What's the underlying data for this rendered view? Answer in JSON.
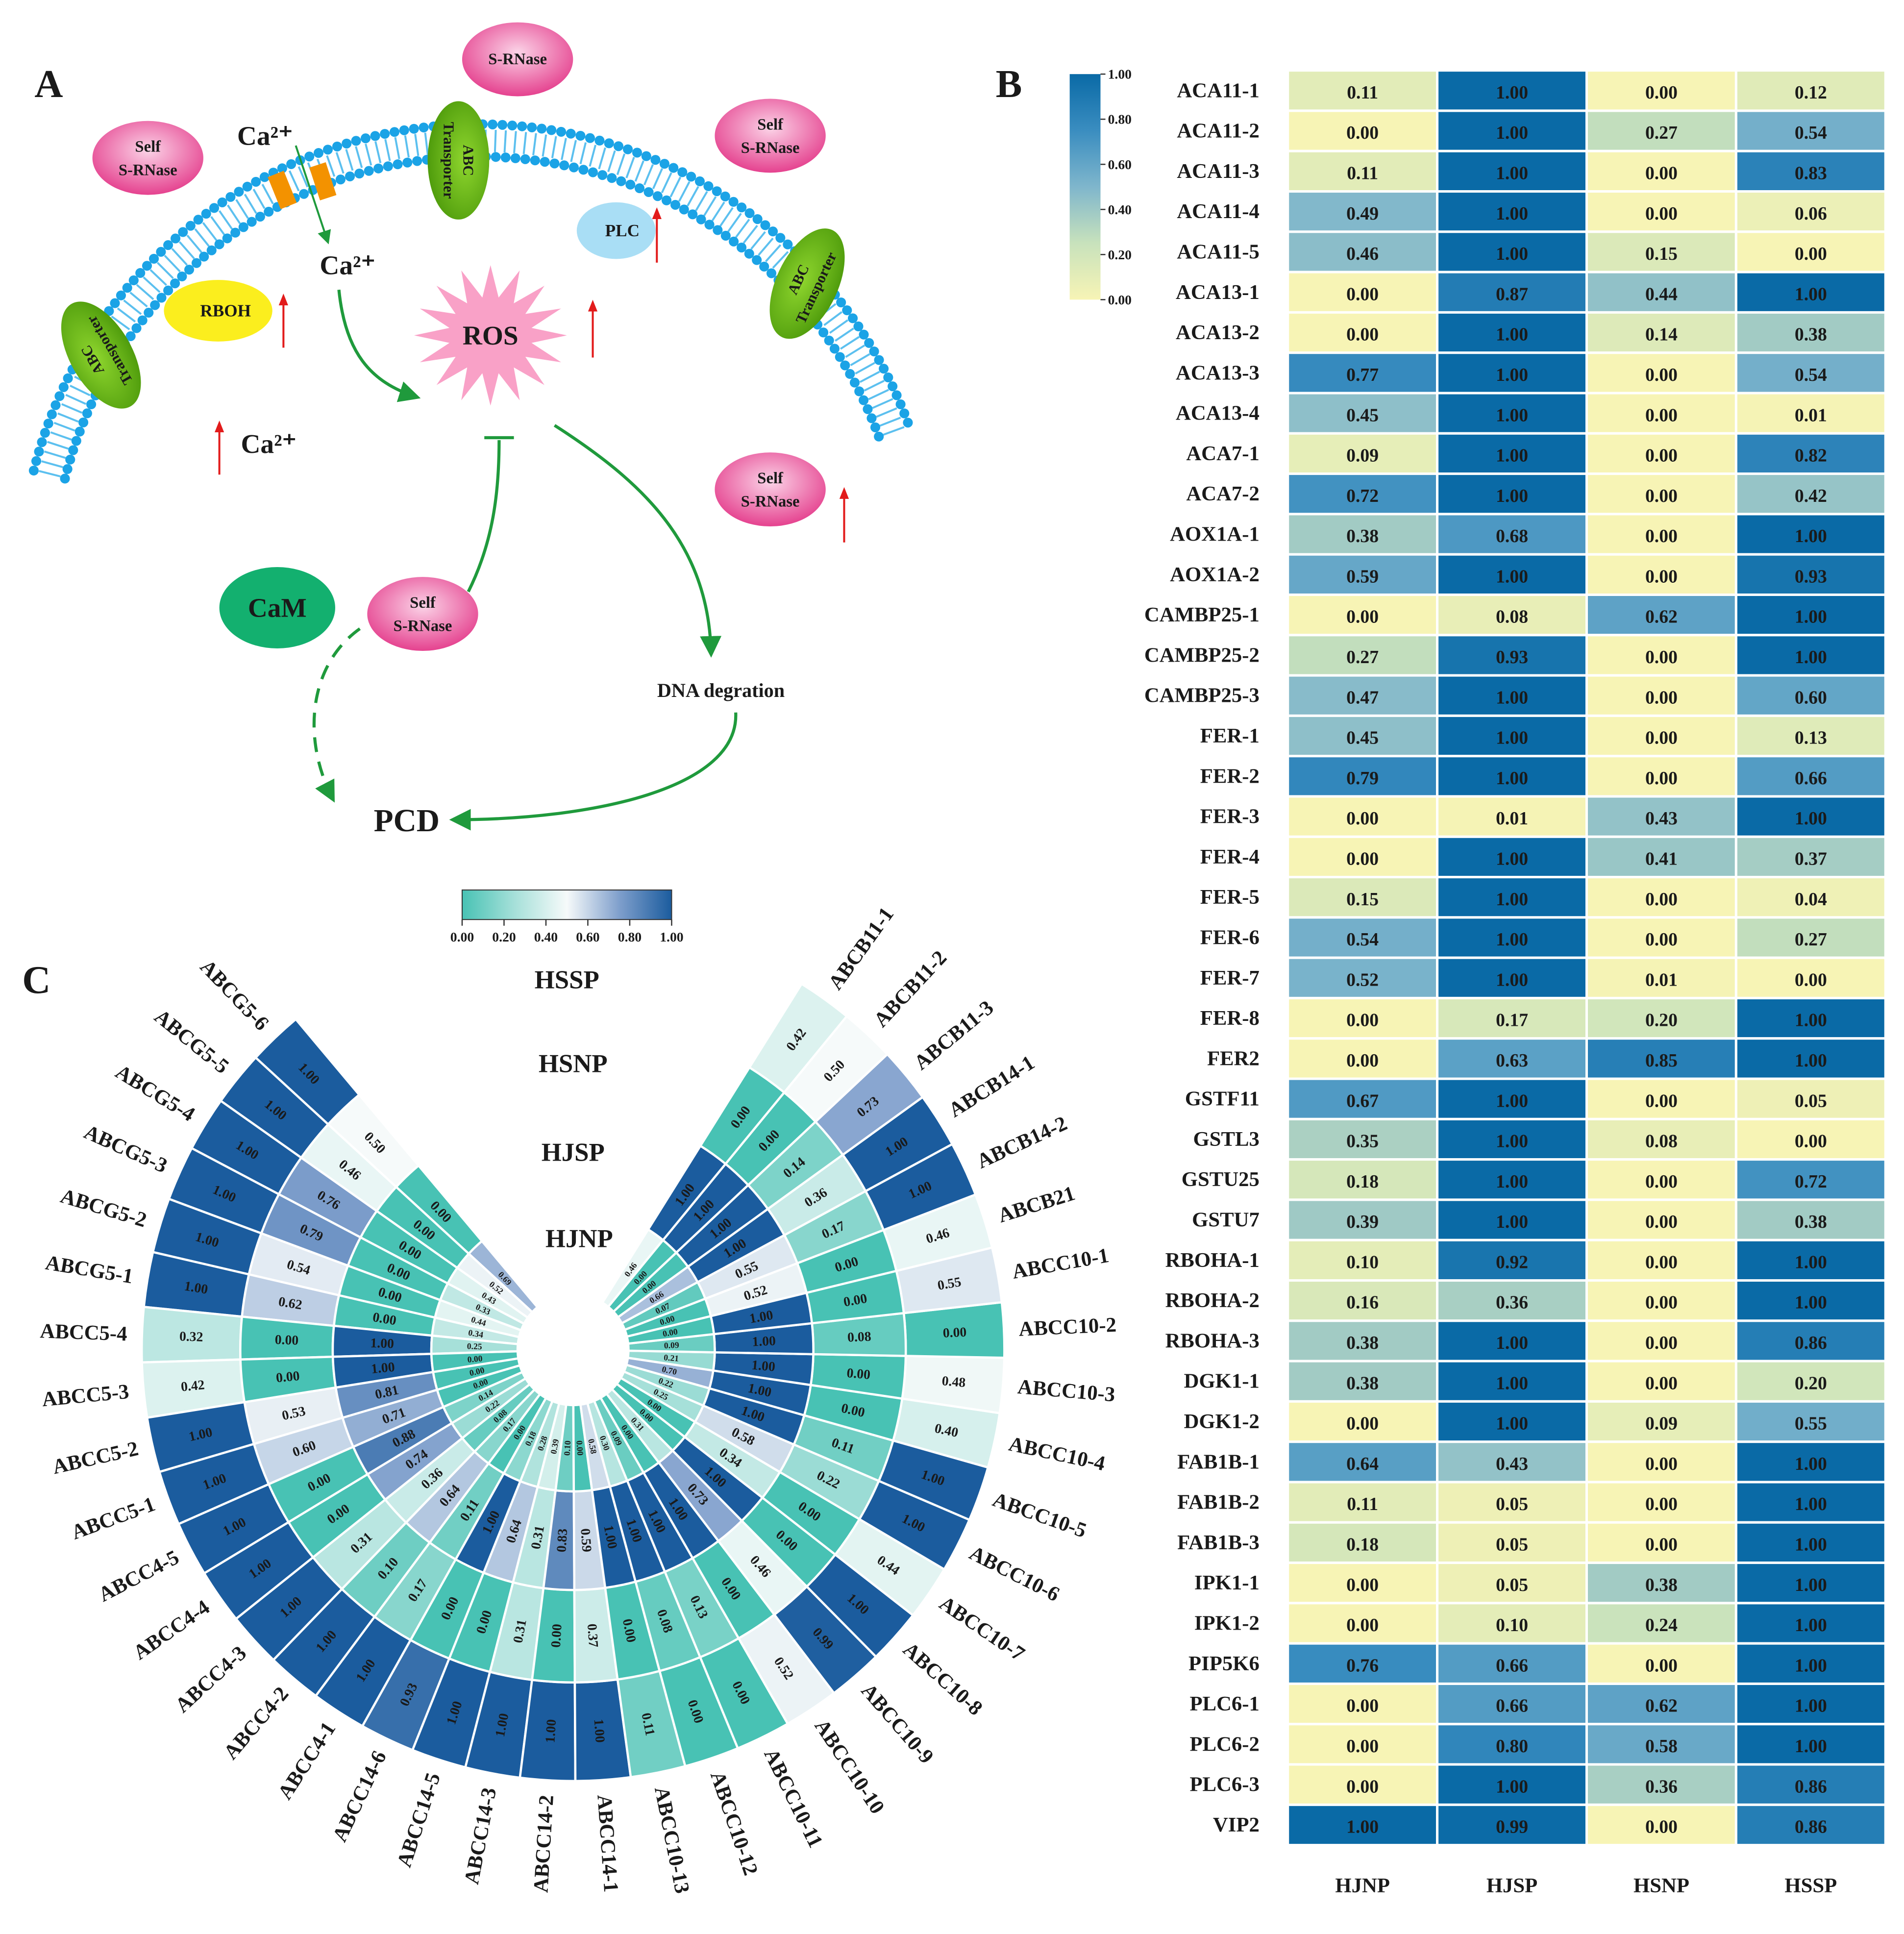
{
  "panel_labels": [
    "A",
    "B",
    "C"
  ],
  "diagram": {
    "s_rnase": "S-RNase",
    "self_s_rnase": [
      "Self",
      "S-RNase"
    ],
    "ca": "Ca²⁺",
    "abc_transporter": [
      "ABC",
      "Transporter"
    ],
    "plc": "PLC",
    "rboh": "RBOH",
    "ros": "ROS",
    "cam": "CaM",
    "dna": "DNA degration",
    "pcd": "PCD"
  },
  "chart_data": [
    {
      "type": "heatmap",
      "rows": [
        "ACA11-1",
        "ACA11-2",
        "ACA11-3",
        "ACA11-4",
        "ACA11-5",
        "ACA13-1",
        "ACA13-2",
        "ACA13-3",
        "ACA13-4",
        "ACA7-1",
        "ACA7-2",
        "AOX1A-1",
        "AOX1A-2",
        "CAMBP25-1",
        "CAMBP25-2",
        "CAMBP25-3",
        "FER-1",
        "FER-2",
        "FER-3",
        "FER-4",
        "FER-5",
        "FER-6",
        "FER-7",
        "FER-8",
        "FER2",
        "GSTF11",
        "GSTL3",
        "GSTU25",
        "GSTU7",
        "RBOHA-1",
        "RBOHA-2",
        "RBOHA-3",
        "DGK1-1",
        "DGK1-2",
        "FAB1B-1",
        "FAB1B-2",
        "FAB1B-3",
        "IPK1-1",
        "IPK1-2",
        "PIP5K6",
        "PLC6-1",
        "PLC6-2",
        "PLC6-3",
        "VIP2"
      ],
      "columns": [
        "HJNP",
        "HJSP",
        "HSNP",
        "HSSP"
      ],
      "values": [
        [
          0.11,
          1,
          0,
          0.12
        ],
        [
          0,
          1,
          0.27,
          0.54
        ],
        [
          0.11,
          1,
          0,
          0.83
        ],
        [
          0.49,
          1,
          0,
          0.06
        ],
        [
          0.46,
          1,
          0.15,
          0
        ],
        [
          0,
          0.87,
          0.44,
          1
        ],
        [
          0,
          1,
          0.14,
          0.38
        ],
        [
          0.77,
          1,
          0,
          0.54
        ],
        [
          0.45,
          1,
          0,
          0.01
        ],
        [
          0.09,
          1,
          0,
          0.82
        ],
        [
          0.72,
          1,
          0,
          0.42
        ],
        [
          0.38,
          0.68,
          0,
          1
        ],
        [
          0.59,
          1,
          0,
          0.93
        ],
        [
          0,
          0.08,
          0.62,
          1
        ],
        [
          0.27,
          0.93,
          0,
          1
        ],
        [
          0.47,
          1,
          0,
          0.6
        ],
        [
          0.45,
          1,
          0,
          0.13
        ],
        [
          0.79,
          1,
          0,
          0.66
        ],
        [
          0,
          0.01,
          0.43,
          1
        ],
        [
          0,
          1,
          0.41,
          0.37
        ],
        [
          0.15,
          1,
          0,
          0.04
        ],
        [
          0.54,
          1,
          0,
          0.27
        ],
        [
          0.52,
          1,
          0.01,
          0
        ],
        [
          0,
          0.17,
          0.2,
          1
        ],
        [
          0,
          0.63,
          0.85,
          1
        ],
        [
          0.67,
          1,
          0,
          0.05
        ],
        [
          0.35,
          1,
          0.08,
          0
        ],
        [
          0.18,
          1,
          0,
          0.72
        ],
        [
          0.39,
          1,
          0,
          0.38
        ],
        [
          0.1,
          0.92,
          0,
          1
        ],
        [
          0.16,
          0.36,
          0,
          1
        ],
        [
          0.38,
          1,
          0,
          0.86
        ],
        [
          0.38,
          1,
          0,
          0.2
        ],
        [
          0,
          1,
          0.09,
          0.55
        ],
        [
          0.64,
          0.43,
          0,
          1
        ],
        [
          0.11,
          0.05,
          0,
          1
        ],
        [
          0.18,
          0.05,
          0,
          1
        ],
        [
          0,
          0.05,
          0.38,
          1
        ],
        [
          0,
          0.1,
          0.24,
          1
        ],
        [
          0.76,
          0.66,
          0,
          1
        ],
        [
          0,
          0.66,
          0.62,
          1
        ],
        [
          0,
          0.8,
          0.58,
          1
        ],
        [
          0,
          1,
          0.36,
          0.86
        ],
        [
          1,
          0.99,
          0,
          0.86
        ]
      ],
      "value_labels": [
        [
          "0.11",
          "1.00",
          "0.00",
          "0.12"
        ],
        [
          "0.00",
          "1.00",
          "0.27",
          "0.54"
        ],
        [
          "0.11",
          "1.00",
          "0.00",
          "0.83"
        ],
        [
          "0.49",
          "1.00",
          "0.00",
          "0.06"
        ],
        [
          "0.46",
          "1.00",
          "0.15",
          "0.00"
        ],
        [
          "0.00",
          "0.87",
          "0.44",
          "1.00"
        ],
        [
          "0.00",
          "1.00",
          "0.14",
          "0.38"
        ],
        [
          "0.77",
          "1.00",
          "0.00",
          "0.54"
        ],
        [
          "0.45",
          "1.00",
          "0.00",
          "0.01"
        ],
        [
          "0.09",
          "1.00",
          "0.00",
          "0.82"
        ],
        [
          "0.72",
          "1.00",
          "0.00",
          "0.42"
        ],
        [
          "0.38",
          "0.68",
          "0.00",
          "1.00"
        ],
        [
          "0.59",
          "1.00",
          "0.00",
          "0.93"
        ],
        [
          "0.00",
          "0.08",
          "0.62",
          "1.00"
        ],
        [
          "0.27",
          "0.93",
          "0.00",
          "1.00"
        ],
        [
          "0.47",
          "1.00",
          "0.00",
          "0.60"
        ],
        [
          "0.45",
          "1.00",
          "0.00",
          "0.13"
        ],
        [
          "0.79",
          "1.00",
          "0.00",
          "0.66"
        ],
        [
          "0.00",
          "0.01",
          "0.43",
          "1.00"
        ],
        [
          "0.00",
          "1.00",
          "0.41",
          "0.37"
        ],
        [
          "0.15",
          "1.00",
          "0.00",
          "0.04"
        ],
        [
          "0.54",
          "1.00",
          "0.00",
          "0.27"
        ],
        [
          "0.52",
          "1.00",
          "0.01",
          "0.00"
        ],
        [
          "0.00",
          "0.17",
          "0.20",
          "1.00"
        ],
        [
          "0.00",
          "0.63",
          "0.85",
          "1.00"
        ],
        [
          "0.67",
          "1.00",
          "0.00",
          "0.05"
        ],
        [
          "0.35",
          "1.00",
          "0.08",
          "0.00"
        ],
        [
          "0.18",
          "1.00",
          "0.00",
          "0.72"
        ],
        [
          "0.39",
          "1.00",
          "0.00",
          "0.38"
        ],
        [
          "0.10",
          "0.92",
          "0.00",
          "1.00"
        ],
        [
          "0.16",
          "0.36",
          "0.00",
          "1.00"
        ],
        [
          "0.38",
          "1.00",
          "0.00",
          "0.86"
        ],
        [
          "0.38",
          "1.00",
          "0.00",
          "0.20"
        ],
        [
          "0.00",
          "1.00",
          "0.09",
          "0.55"
        ],
        [
          "0.64",
          "0.43",
          "0.00",
          "1.00"
        ],
        [
          "0.11",
          "0.05",
          "0.00",
          "1.00"
        ],
        [
          "0.18",
          "0.05",
          "0.00",
          "1.00"
        ],
        [
          "0.00",
          "0.05",
          "0.38",
          "1.00"
        ],
        [
          "0.00",
          "0.10",
          "0.24",
          "1.00"
        ],
        [
          "0.76",
          "0.66",
          "0.00",
          "1.00"
        ],
        [
          "0.00",
          "0.66",
          "0.62",
          "1.00"
        ],
        [
          "0.00",
          "0.80",
          "0.58",
          "1.00"
        ],
        [
          "0.00",
          "1.00",
          "0.36",
          "0.86"
        ],
        [
          "1.00",
          "0.99",
          "0.00",
          "0.86"
        ]
      ],
      "colors": [
        "#f7f4b5",
        "#c8e2bc",
        "#7fb6cc",
        "#3a8dc0",
        "#0a6aa6"
      ],
      "clim": [
        0,
        1
      ],
      "cticks": [
        {
          "value": 0,
          "label": "0.00"
        },
        {
          "value": 0.2,
          "label": "0.20"
        },
        {
          "value": 0.4,
          "label": "0.40"
        },
        {
          "value": 0.6,
          "label": "0.60"
        },
        {
          "value": 0.8,
          "label": "0.80"
        },
        {
          "value": 1,
          "label": "1.00"
        }
      ]
    },
    {
      "type": "circular_heatmap",
      "categories": [
        "ABCG5-6",
        "ABCG5-5",
        "ABCG5-4",
        "ABCG5-3",
        "ABCG5-2",
        "ABCG5-1",
        "ABCC5-4",
        "ABCC5-3",
        "ABCC5-2",
        "ABCC5-1",
        "ABCC4-5",
        "ABCC4-4",
        "ABCC4-3",
        "ABCC4-2",
        "ABCC4-1",
        "ABCC14-6",
        "ABCC14-5",
        "ABCC14-3",
        "ABCC14-2",
        "ABCC14-1",
        "ABCC10-13",
        "ABCC10-12",
        "ABCC10-11",
        "ABCC10-10",
        "ABCC10-9",
        "ABCC10-8",
        "ABCC10-7",
        "ABCC10-6",
        "ABCC10-5",
        "ABCC10-4",
        "ABCC10-3",
        "ABCC10-2",
        "ABCC10-1",
        "ABCB21",
        "ABCB14-2",
        "ABCB14-1",
        "ABCB11-3",
        "ABCB11-2",
        "ABCB11-1"
      ],
      "series": [
        {
          "name": "HSSP",
          "values": [
            1,
            1,
            1,
            1,
            1,
            1,
            0.32,
            0.42,
            1,
            1,
            1,
            1,
            1,
            1,
            1,
            0.93,
            1,
            1,
            1,
            1,
            0.11,
            0,
            0,
            0.52,
            0.99,
            1,
            0.44,
            1,
            1,
            0.4,
            0.48,
            0,
            0.55,
            0.46,
            1,
            1,
            0.73,
            0.5,
            0.42
          ],
          "value_labels": [
            "1.00",
            "1.00",
            "1.00",
            "1.00",
            "1.00",
            "1.00",
            "0.32",
            "0.42",
            "1.00",
            "1.00",
            "1.00",
            "1.00",
            "1.00",
            "1.00",
            "1.00",
            "0.93",
            "1.00",
            "1.00",
            "1.00",
            "1.00",
            "0.11",
            "0.00",
            "0.00",
            "0.52",
            "0.99",
            "1.00",
            "0.44",
            "1.00",
            "1.00",
            "0.40",
            "0.48",
            "0.00",
            "0.55",
            "0.46",
            "1.00",
            "1.00",
            "0.73",
            "0.50",
            "0.42"
          ]
        },
        {
          "name": "HSNP",
          "values": [
            0.5,
            0.46,
            0.76,
            0.79,
            0.54,
            0.62,
            0,
            0,
            0.53,
            0.6,
            0,
            0,
            0.31,
            0.1,
            0.17,
            0,
            0,
            0.31,
            0,
            0.37,
            0,
            0.08,
            0.13,
            0,
            0.46,
            0,
            0,
            0.22,
            0.11,
            0,
            0,
            0.08,
            0,
            0,
            0.17,
            0.36,
            0.14,
            0,
            0
          ],
          "value_labels": [
            "0.50",
            "0.46",
            "0.76",
            "0.79",
            "0.54",
            "0.62",
            "0.00",
            "0.00",
            "0.53",
            "0.60",
            "0.00",
            "0.00",
            "0.31",
            "0.10",
            "0.17",
            "0.00",
            "0.00",
            "0.31",
            "0.00",
            "0.37",
            "0.00",
            "0.08",
            "0.13",
            "0.00",
            "0.46",
            "0.00",
            "0.00",
            "0.22",
            "0.11",
            "0.00",
            "0.00",
            "0.08",
            "0.00",
            "0.00",
            "0.17",
            "0.36",
            "0.14",
            "0.00",
            "0.00"
          ]
        },
        {
          "name": "HJSP",
          "values": [
            0,
            0,
            0,
            0,
            0,
            0,
            1,
            1,
            0.81,
            0.71,
            0.88,
            0.74,
            0.36,
            0.64,
            0.11,
            1,
            0.64,
            0.31,
            0.83,
            0.59,
            1,
            1,
            1,
            1,
            0.73,
            1,
            0.34,
            0.58,
            1,
            1,
            1,
            1,
            1,
            0.52,
            0.55,
            1,
            1,
            1,
            1
          ],
          "value_labels": [
            "0.00",
            "0.00",
            "0.00",
            "0.00",
            "0.00",
            "0.00",
            "1.00",
            "1.00",
            "0.81",
            "0.71",
            "0.88",
            "0.74",
            "0.36",
            "0.64",
            "0.11",
            "1.00",
            "0.64",
            "0.31",
            "0.83",
            "0.59",
            "1.00",
            "1.00",
            "1.00",
            "1.00",
            "0.73",
            "1.00",
            "0.34",
            "0.58",
            "1.00",
            "1.00",
            "1.00",
            "1.00",
            "1.00",
            "0.52",
            "0.55",
            "1.00",
            "1.00",
            "1.00",
            "1.00"
          ]
        },
        {
          "name": "HJNP",
          "values": [
            0.69,
            0.52,
            0.43,
            0.33,
            0.44,
            0.34,
            0.25,
            0,
            0,
            0,
            0.14,
            0.22,
            0.08,
            0.17,
            0,
            0.18,
            0.28,
            0.39,
            0.1,
            0,
            0.58,
            0.3,
            0.09,
            0,
            0.31,
            0,
            0,
            0.25,
            0.22,
            0.7,
            0.21,
            0.09,
            0,
            0,
            0.07,
            0.66,
            0,
            0,
            0.46
          ],
          "value_labels": [
            "0.69",
            "0.52",
            "0.43",
            "0.33",
            "0.44",
            "0.34",
            "0.25",
            "0.00",
            "0.00",
            "0.00",
            "0.14",
            "0.22",
            "0.08",
            "0.17",
            "0.00",
            "0.18",
            "0.28",
            "0.39",
            "0.10",
            "0.00",
            "0.58",
            "0.30",
            "0.09",
            "0.00",
            "0.31",
            "0.00",
            "0.00",
            "0.25",
            "0.22",
            "0.70",
            "0.21",
            "0.09",
            "0.00",
            "0.00",
            "0.07",
            "0.66",
            "0.00",
            "0.00",
            "0.46"
          ]
        }
      ],
      "colors": [
        "#48c2b4",
        "#a6e0d9",
        "#f6fafa",
        "#7f9fcc",
        "#1b5c9e"
      ],
      "clim": [
        0,
        1
      ],
      "cticks": [
        {
          "value": 0,
          "label": "0.00"
        },
        {
          "value": 0.2,
          "label": "0.20"
        },
        {
          "value": 0.4,
          "label": "0.40"
        },
        {
          "value": 0.6,
          "label": "0.60"
        },
        {
          "value": 0.8,
          "label": "0.80"
        },
        {
          "value": 1,
          "label": "1.00"
        }
      ]
    }
  ]
}
